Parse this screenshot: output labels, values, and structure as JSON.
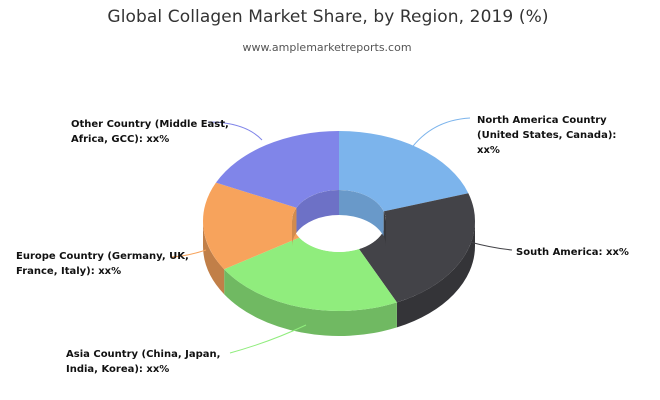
{
  "chart_data": {
    "type": "pie",
    "title": "Global Collagen Market Share, by Region, 2019 (%)",
    "subtitle": "www.amplemarketreports.com",
    "values": [
      20,
      23,
      23,
      16,
      18
    ],
    "labels": [
      "North America Country (United States, Canada): xx%",
      "South America: xx%",
      "Asia Country (China, Japan, India, Korea): xx%",
      "Europe Country (Germany, UK, France, Italy): xx%",
      "Other Country (Middle East, Africa, GCC): xx%"
    ],
    "colors": [
      "#7cb4ec",
      "#434348",
      "#90ed7d",
      "#f7a35c",
      "#8085e9"
    ]
  }
}
